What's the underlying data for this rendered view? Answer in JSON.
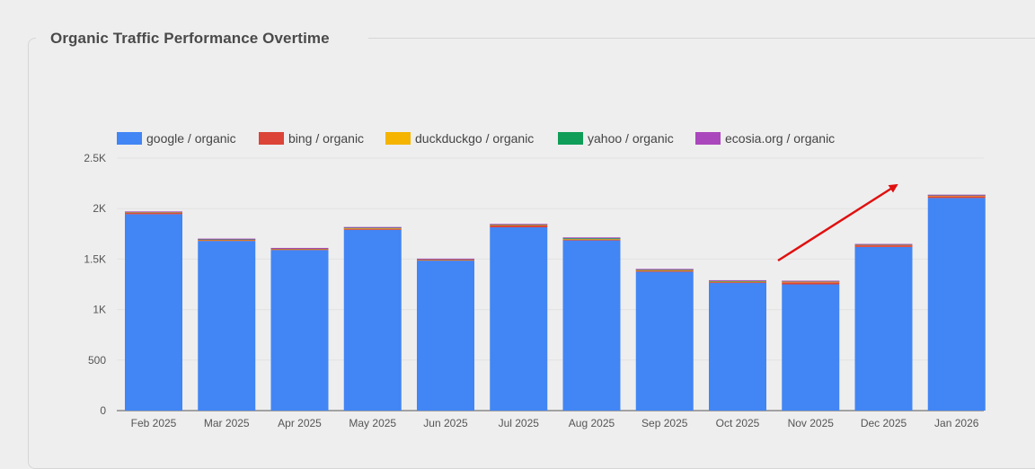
{
  "card": {
    "title": "Organic Traffic Performance Overtime"
  },
  "chart_data": {
    "type": "bar",
    "stacked": true,
    "title": "Organic Traffic Performance Overtime",
    "xlabel": "",
    "ylabel": "",
    "ylim": [
      0,
      2500
    ],
    "yticks": [
      0,
      500,
      1000,
      1500,
      2000,
      2500
    ],
    "ytick_labels": [
      "0",
      "500",
      "1K",
      "1.5K",
      "2K",
      "2.5K"
    ],
    "grid": true,
    "legend_position": "top-left",
    "categories": [
      "Feb 2025",
      "Mar 2025",
      "Apr 2025",
      "May 2025",
      "Jun 2025",
      "Jul 2025",
      "Aug 2025",
      "Sep 2025",
      "Oct 2025",
      "Nov 2025",
      "Dec 2025",
      "Jan 2026"
    ],
    "series": [
      {
        "name": "google / organic",
        "color": "#4285f4",
        "values": [
          1945,
          1680,
          1590,
          1790,
          1485,
          1815,
          1685,
          1375,
          1265,
          1250,
          1620,
          2105
        ]
      },
      {
        "name": "bing / organic",
        "color": "#db4437",
        "values": [
          12,
          6,
          7,
          10,
          6,
          18,
          8,
          9,
          8,
          20,
          16,
          18
        ]
      },
      {
        "name": "duckduckgo / organic",
        "color": "#f4b400",
        "values": [
          4,
          4,
          3,
          5,
          3,
          4,
          5,
          6,
          4,
          5,
          3,
          4
        ]
      },
      {
        "name": "yahoo / organic",
        "color": "#0f9d58",
        "values": [
          2,
          4,
          2,
          4,
          2,
          3,
          8,
          4,
          5,
          2,
          2,
          2
        ]
      },
      {
        "name": "ecosia.org / organic",
        "color": "#ab47bc",
        "values": [
          1,
          1,
          1,
          1,
          1,
          1,
          1,
          1,
          1,
          1,
          1,
          1
        ]
      }
    ],
    "annotation": {
      "type": "arrow",
      "color": "#e01010",
      "description": "upward trend arrow from Nov 2025 toward Jan 2026"
    }
  }
}
